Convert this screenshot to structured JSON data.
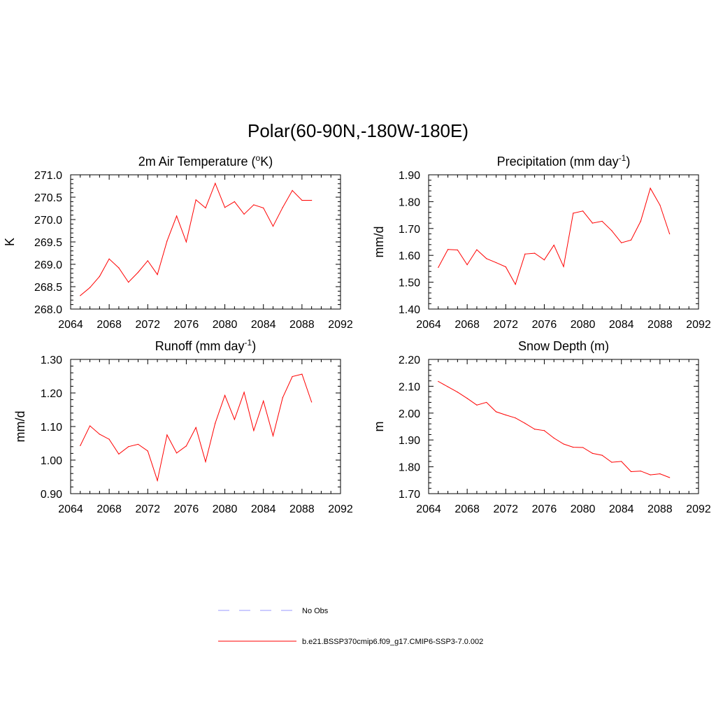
{
  "figure_title": "Polar(60-90N,-180W-180E)",
  "colors": {
    "model_line": "#ff0000",
    "obs_line": "#9999ff",
    "axes": "#000000"
  },
  "legend": [
    {
      "label": "No Obs",
      "style": "dashed",
      "color": "#9999ff"
    },
    {
      "label": "b.e21.BSSP370cmip6.f09_g17.CMIP6-SSP3-7.0.002",
      "style": "solid",
      "color": "#ff0000"
    }
  ],
  "chart_data": [
    {
      "type": "line",
      "title": "2m Air Temperature (",
      "title_parts": {
        "pre": "2m Air Temperature (",
        "sup": "o",
        "post": "K)"
      },
      "xlabel": "",
      "ylabel": "K",
      "xlim": [
        2064,
        2092
      ],
      "ylim": [
        268.0,
        271.0
      ],
      "xticks": [
        2064,
        2068,
        2072,
        2076,
        2080,
        2084,
        2088,
        2092
      ],
      "xtick_labels": [
        "2064",
        "2068",
        "2072",
        "2076",
        "2080",
        "2084",
        "2088",
        "2092"
      ],
      "yticks": [
        268.0,
        268.5,
        269.0,
        269.5,
        270.0,
        270.5,
        271.0
      ],
      "ytick_labels": [
        "268.0",
        "268.5",
        "269.0",
        "269.5",
        "270.0",
        "270.5",
        "271.0"
      ],
      "grid": false,
      "x": [
        2065,
        2066,
        2067,
        2068,
        2069,
        2070,
        2071,
        2072,
        2073,
        2074,
        2075,
        2076,
        2077,
        2078,
        2079,
        2080,
        2081,
        2082,
        2083,
        2084,
        2085,
        2086,
        2087,
        2088,
        2089
      ],
      "series": [
        {
          "values": [
            268.3,
            268.48,
            268.73,
            269.12,
            268.92,
            268.6,
            268.82,
            269.08,
            268.77,
            269.52,
            270.08,
            269.5,
            270.44,
            270.26,
            270.81,
            270.27,
            270.4,
            270.12,
            270.33,
            270.26,
            269.85,
            270.27,
            270.65,
            270.43,
            270.43
          ]
        }
      ]
    },
    {
      "type": "line",
      "title": "Precipitation (mm day",
      "title_parts": {
        "pre": "Precipitation (mm day",
        "sup": "-1",
        "post": ")"
      },
      "xlabel": "",
      "ylabel": "mm/d",
      "xlim": [
        2064,
        2092
      ],
      "ylim": [
        1.4,
        1.9
      ],
      "xticks": [
        2064,
        2068,
        2072,
        2076,
        2080,
        2084,
        2088,
        2092
      ],
      "xtick_labels": [
        "2064",
        "2068",
        "2072",
        "2076",
        "2080",
        "2084",
        "2088",
        "2092"
      ],
      "yticks": [
        1.4,
        1.5,
        1.6,
        1.7,
        1.8,
        1.9
      ],
      "ytick_labels": [
        "1.40",
        "1.50",
        "1.60",
        "1.70",
        "1.80",
        "1.90"
      ],
      "grid": false,
      "x": [
        2065,
        2066,
        2067,
        2068,
        2069,
        2070,
        2071,
        2072,
        2073,
        2074,
        2075,
        2076,
        2077,
        2078,
        2079,
        2080,
        2081,
        2082,
        2083,
        2084,
        2085,
        2086,
        2087,
        2088,
        2089
      ],
      "series": [
        {
          "values": [
            1.555,
            1.622,
            1.62,
            1.565,
            1.621,
            1.588,
            1.573,
            1.557,
            1.492,
            1.605,
            1.608,
            1.583,
            1.638,
            1.558,
            1.757,
            1.765,
            1.72,
            1.727,
            1.692,
            1.647,
            1.657,
            1.727,
            1.85,
            1.787,
            1.68
          ]
        }
      ]
    },
    {
      "type": "line",
      "title": "Runoff (mm day",
      "title_parts": {
        "pre": "Runoff (mm day",
        "sup": "-1",
        "post": ")"
      },
      "xlabel": "",
      "ylabel": "mm/d",
      "xlim": [
        2064,
        2092
      ],
      "ylim": [
        0.9,
        1.3
      ],
      "xticks": [
        2064,
        2068,
        2072,
        2076,
        2080,
        2084,
        2088,
        2092
      ],
      "xtick_labels": [
        "2064",
        "2068",
        "2072",
        "2076",
        "2080",
        "2084",
        "2088",
        "2092"
      ],
      "yticks": [
        0.9,
        1.0,
        1.1,
        1.2,
        1.3
      ],
      "ytick_labels": [
        "0.90",
        "1.00",
        "1.10",
        "1.20",
        "1.30"
      ],
      "grid": false,
      "x": [
        2065,
        2066,
        2067,
        2068,
        2069,
        2070,
        2071,
        2072,
        2073,
        2074,
        2075,
        2076,
        2077,
        2078,
        2079,
        2080,
        2081,
        2082,
        2083,
        2084,
        2085,
        2086,
        2087,
        2088,
        2089
      ],
      "series": [
        {
          "values": [
            1.043,
            1.102,
            1.077,
            1.062,
            1.018,
            1.04,
            1.047,
            1.027,
            0.939,
            1.075,
            1.021,
            1.042,
            1.097,
            0.995,
            1.11,
            1.193,
            1.121,
            1.202,
            1.088,
            1.176,
            1.072,
            1.186,
            1.249,
            1.256,
            1.173
          ]
        }
      ]
    },
    {
      "type": "line",
      "title": "Snow Depth (m)",
      "title_parts": {
        "pre": "Snow Depth (m)",
        "sup": "",
        "post": ""
      },
      "xlabel": "",
      "ylabel": "m",
      "xlim": [
        2064,
        2092
      ],
      "ylim": [
        1.7,
        2.2
      ],
      "xticks": [
        2064,
        2068,
        2072,
        2076,
        2080,
        2084,
        2088,
        2092
      ],
      "xtick_labels": [
        "2064",
        "2068",
        "2072",
        "2076",
        "2080",
        "2084",
        "2088",
        "2092"
      ],
      "yticks": [
        1.7,
        1.8,
        1.9,
        2.0,
        2.1,
        2.2
      ],
      "ytick_labels": [
        "1.70",
        "1.80",
        "1.90",
        "2.00",
        "2.10",
        "2.20"
      ],
      "grid": false,
      "x": [
        2065,
        2066,
        2067,
        2068,
        2069,
        2070,
        2071,
        2072,
        2073,
        2074,
        2075,
        2076,
        2077,
        2078,
        2079,
        2080,
        2081,
        2082,
        2083,
        2084,
        2085,
        2086,
        2087,
        2088,
        2089
      ],
      "series": [
        {
          "values": [
            2.118,
            2.098,
            2.078,
            2.055,
            2.03,
            2.04,
            2.005,
            1.993,
            1.982,
            1.962,
            1.94,
            1.935,
            1.907,
            1.885,
            1.873,
            1.872,
            1.85,
            1.843,
            1.817,
            1.82,
            1.782,
            1.784,
            1.77,
            1.774,
            1.76
          ]
        }
      ]
    }
  ]
}
